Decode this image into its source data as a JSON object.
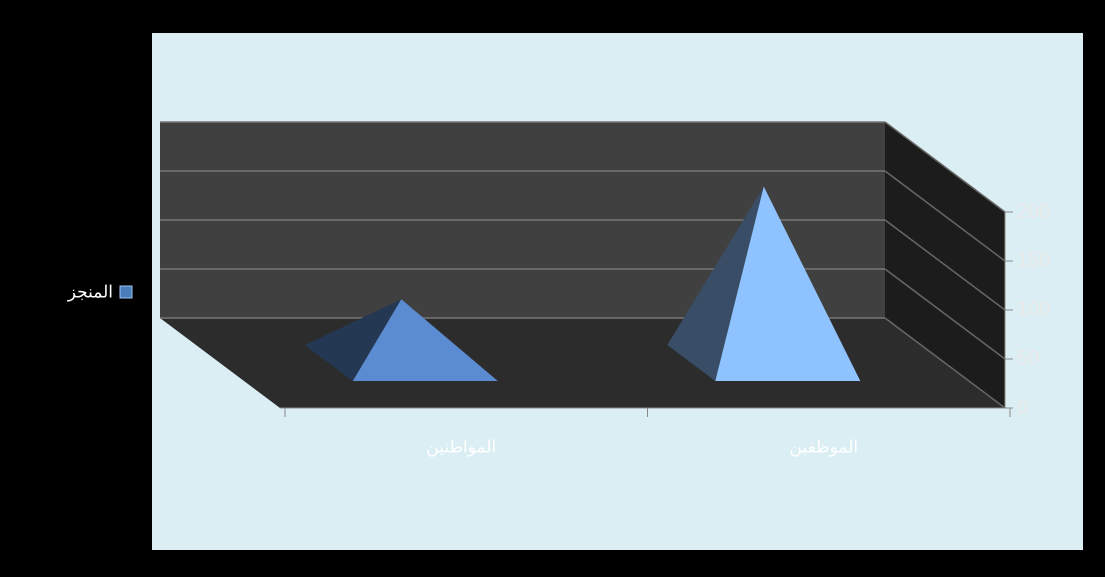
{
  "chart_data": {
    "type": "pyramid3d",
    "categories": [
      "المواطنين",
      "الموظفين"
    ],
    "series": [
      {
        "name": "المنجز",
        "color": "#4a7ebb",
        "values": [
          65,
          180
        ]
      }
    ],
    "point_colors": [
      "#5b8bd0",
      "#8fc3ff"
    ],
    "ylim": [
      0,
      200
    ],
    "yticks": [
      0,
      50,
      100,
      150,
      200
    ],
    "grid": true,
    "legend": "left"
  }
}
